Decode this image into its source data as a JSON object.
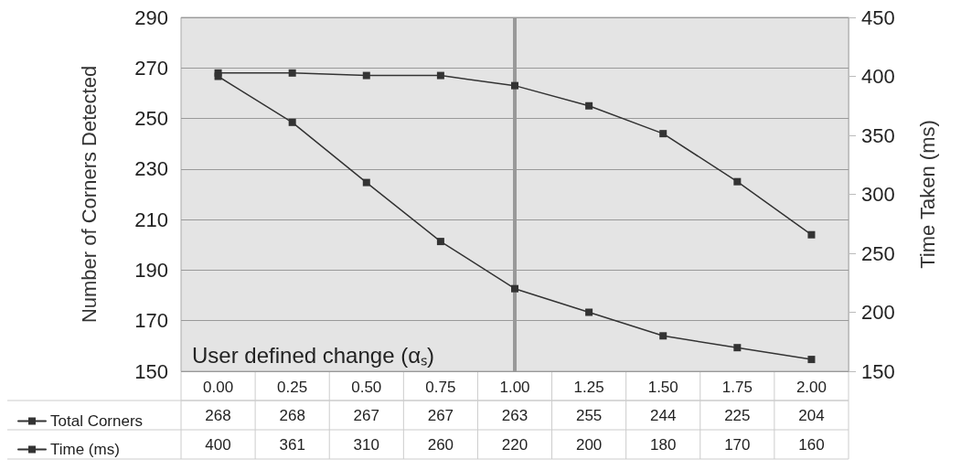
{
  "chart_data": {
    "type": "line",
    "categories": [
      "0.00",
      "0.25",
      "0.50",
      "0.75",
      "1.00",
      "1.25",
      "1.50",
      "1.75",
      "2.00"
    ],
    "series": [
      {
        "name": "Total Corners",
        "color": "#333333",
        "values": [
          268,
          268,
          267,
          267,
          263,
          255,
          244,
          225,
          204
        ]
      },
      {
        "name": "Time (ms)",
        "color": "#333333",
        "axis": "y2",
        "values": [
          400,
          361,
          310,
          260,
          220,
          200,
          180,
          170,
          160
        ]
      }
    ],
    "xlabel": "User defined change (αₛ)",
    "ylabel": "Number of Corners Detected",
    "y2label": "Time Taken (ms)",
    "ylim": [
      150,
      290
    ],
    "yticks": [
      150,
      170,
      190,
      210,
      230,
      250,
      270,
      290
    ],
    "y2lim": [
      150,
      450
    ],
    "y2ticks": [
      150,
      200,
      250,
      300,
      350,
      400,
      450
    ],
    "ref_lines": [
      {
        "axis": "x",
        "value": "1.00",
        "color": "#999999"
      }
    ],
    "grid": "y",
    "legend": "bottom left",
    "marker": "square",
    "line_style": "solid",
    "data_labels": true
  }
}
